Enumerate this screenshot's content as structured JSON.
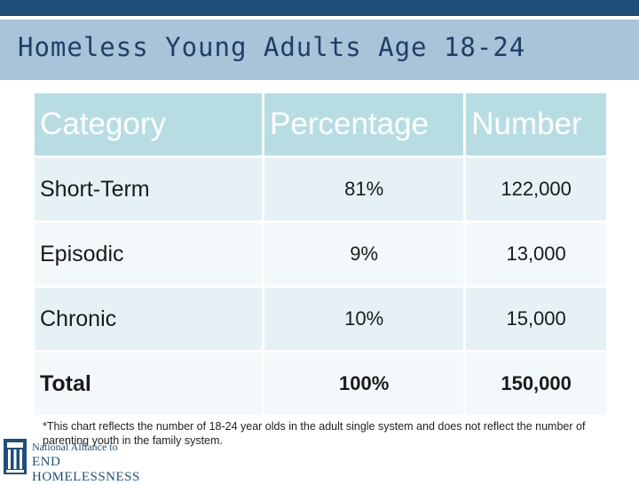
{
  "title": "Homeless Young Adults Age 18-24",
  "table": {
    "headers": [
      "Category",
      "Percentage",
      "Number"
    ],
    "rows": [
      {
        "category": "Short-Term",
        "percentage": "81%",
        "number": "122,000"
      },
      {
        "category": "Episodic",
        "percentage": "9%",
        "number": "13,000"
      },
      {
        "category": "Chronic",
        "percentage": "10%",
        "number": "15,000"
      },
      {
        "category": "Total",
        "percentage": "100%",
        "number": "150,000"
      }
    ]
  },
  "footnote": "*This chart reflects the number of 18-24 year  olds in the adult single system and does not reflect the number of parenting youth in the family system.",
  "logo": {
    "line1": "National Alliance to",
    "line2": "END HOMELESSNESS"
  },
  "colors": {
    "title_band": "#a9c3d9",
    "header_cell": "#b7dde3",
    "row_light": "#e6f1f5",
    "row_lighter": "#f3f8fa",
    "brand_navy": "#1f4e79"
  }
}
